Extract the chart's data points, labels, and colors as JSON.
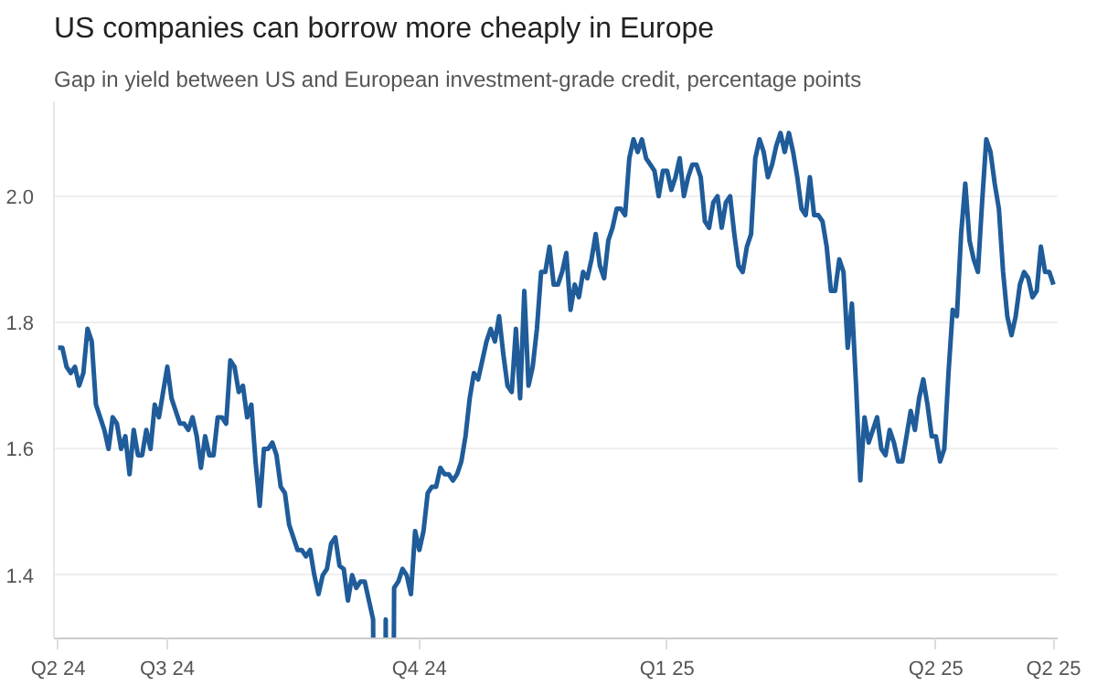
{
  "chart_data": {
    "type": "line",
    "title": "US companies can borrow more cheaply in Europe",
    "subtitle": "Gap in yield between US and European investment-grade credit, percentage points",
    "categories": [
      "Q2 24",
      null,
      null,
      null,
      null,
      null,
      null,
      null,
      null,
      null,
      null,
      null,
      null,
      null,
      null,
      null,
      null,
      null,
      null,
      null,
      null,
      null,
      null,
      null,
      null,
      null,
      "Q3 24",
      null,
      null,
      null,
      null,
      null,
      null,
      null,
      null,
      null,
      null,
      null,
      null,
      null,
      null,
      null,
      null,
      null,
      null,
      null,
      null,
      null,
      null,
      null,
      null,
      null,
      null,
      null,
      null,
      null,
      null,
      null,
      null,
      null,
      null,
      null,
      null,
      null,
      null,
      null,
      null,
      null,
      null,
      null,
      null,
      null,
      null,
      null,
      null,
      null,
      null,
      null,
      null,
      null,
      null,
      null,
      null,
      null,
      null,
      null,
      "Q4 24",
      null,
      null,
      null,
      null,
      null,
      null,
      null,
      null,
      null,
      null,
      null,
      null,
      null,
      null,
      null,
      null,
      null,
      null,
      null,
      null,
      null,
      null,
      null,
      null,
      null,
      null,
      null,
      null,
      null,
      null,
      null,
      null,
      null,
      null,
      null,
      null,
      null,
      null,
      null,
      null,
      null,
      null,
      null,
      null,
      null,
      null,
      null,
      null,
      null,
      null,
      null,
      null,
      null,
      null,
      null,
      null,
      null,
      null,
      "Q1 25",
      null,
      null,
      null,
      null,
      null,
      null,
      null,
      null,
      null,
      null,
      null,
      null,
      null,
      null,
      null,
      null,
      null,
      null,
      null,
      null,
      null,
      null,
      null,
      null,
      null,
      null,
      null,
      null,
      null,
      null,
      null,
      null,
      null,
      null,
      null,
      null,
      null,
      null,
      null,
      null,
      null,
      null,
      null,
      null,
      null,
      null,
      null,
      null,
      null,
      null,
      null,
      null,
      null,
      null,
      null,
      null,
      null,
      null,
      null,
      null,
      null,
      null,
      null,
      "Q2 25",
      null,
      null,
      null,
      null,
      null,
      null,
      null,
      null,
      null,
      null,
      null,
      null,
      null,
      null,
      null,
      null,
      null,
      null,
      null,
      null,
      null,
      null,
      null,
      null,
      null,
      null,
      null,
      "Q2 25"
    ],
    "series": [
      {
        "color": "#1f5c99",
        "values": [
          1.76,
          1.76,
          1.73,
          1.72,
          1.73,
          1.7,
          1.72,
          1.79,
          1.77,
          1.67,
          1.65,
          1.63,
          1.6,
          1.65,
          1.64,
          1.6,
          1.62,
          1.56,
          1.63,
          1.59,
          1.59,
          1.63,
          1.6,
          1.67,
          1.65,
          1.69,
          1.73,
          1.68,
          1.66,
          1.64,
          1.64,
          1.63,
          1.65,
          1.62,
          1.57,
          1.62,
          1.59,
          1.59,
          1.65,
          1.65,
          1.64,
          1.74,
          1.73,
          1.69,
          1.7,
          1.65,
          1.67,
          1.58,
          1.51,
          1.6,
          1.6,
          1.61,
          1.59,
          1.54,
          1.53,
          1.48,
          1.46,
          1.44,
          1.44,
          1.43,
          1.44,
          1.4,
          1.37,
          1.4,
          1.41,
          1.45,
          1.46,
          1.415,
          1.41,
          1.36,
          1.4,
          1.38,
          1.39,
          1.39,
          1.36,
          1.33,
          null,
          null,
          1.33,
          null,
          1.38,
          1.39,
          1.41,
          1.4,
          1.37,
          1.47,
          1.44,
          1.47,
          1.53,
          1.54,
          1.54,
          1.57,
          1.56,
          1.56,
          1.55,
          1.56,
          1.58,
          1.62,
          1.68,
          1.72,
          1.71,
          1.74,
          1.77,
          1.79,
          1.77,
          1.81,
          1.75,
          1.7,
          1.69,
          1.79,
          1.68,
          1.85,
          1.7,
          1.73,
          1.79,
          1.88,
          1.88,
          1.92,
          1.86,
          1.86,
          1.88,
          1.91,
          1.82,
          1.86,
          1.84,
          1.88,
          1.87,
          1.9,
          1.94,
          1.89,
          1.87,
          1.93,
          1.95,
          1.98,
          1.98,
          1.97,
          2.06,
          2.09,
          2.07,
          2.09,
          2.06,
          2.05,
          2.04,
          2.0,
          2.04,
          2.04,
          2.01,
          2.03,
          2.06,
          2.0,
          2.03,
          2.05,
          2.05,
          2.03,
          1.96,
          1.95,
          1.99,
          2.0,
          1.95,
          1.99,
          2.0,
          1.94,
          1.89,
          1.88,
          1.92,
          1.94,
          2.06,
          2.09,
          2.07,
          2.03,
          2.05,
          2.08,
          2.1,
          2.07,
          2.1,
          2.07,
          2.03,
          1.98,
          1.97,
          2.03,
          1.97,
          1.97,
          1.96,
          1.92,
          1.85,
          1.85,
          1.9,
          1.88,
          1.76,
          1.83,
          1.7,
          1.55,
          1.65,
          1.61,
          1.63,
          1.65,
          1.6,
          1.59,
          1.63,
          1.61,
          1.58,
          1.58,
          1.62,
          1.66,
          1.63,
          1.68,
          1.71,
          1.67,
          1.62,
          1.62,
          1.58,
          1.6,
          1.72,
          1.82,
          1.81,
          1.94,
          2.02,
          1.93,
          1.9,
          1.88,
          1.99,
          2.09,
          2.07,
          2.02,
          1.98,
          1.88,
          1.81,
          1.78,
          1.81,
          1.86,
          1.88,
          1.87,
          1.84,
          1.85,
          1.92,
          1.88,
          1.88,
          1.86
        ]
      }
    ],
    "ylim": [
      1.3,
      2.15
    ],
    "yticks": [
      1.4,
      1.6,
      1.8,
      {
        "value": 2.0,
        "label": "2.0"
      }
    ],
    "grid": "y",
    "line_style": "solid",
    "marker": "none"
  }
}
